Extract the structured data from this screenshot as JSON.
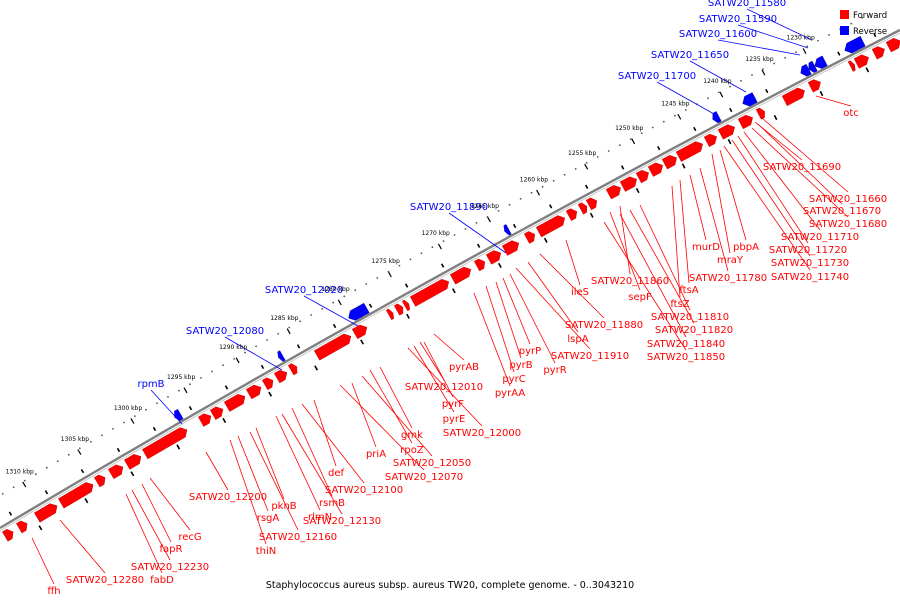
{
  "caption": "Staphylococcus aureus subsp. aureus TW20, complete genome. - 0..3043210",
  "legend": [
    {
      "label": "Forward",
      "color": "#ff0000"
    },
    {
      "label": "Reverse",
      "color": "#0000ff"
    }
  ],
  "colors": {
    "forward": "#ff0000",
    "reverse": "#0000ff",
    "backbone": "#808080",
    "tick": "#000000"
  },
  "ticks": [
    "1230 kbp",
    "1235 kbp",
    "1240 kbp",
    "1245 kbp",
    "1250 kbp",
    "1255 kbp",
    "1260 kbp",
    "1265 kbp",
    "1270 kbp",
    "1275 kbp",
    "1280 kbp",
    "1285 kbp",
    "1290 kbp",
    "1295 kbp",
    "1300 kbp",
    "1305 kbp",
    "1310 kbp"
  ],
  "reverse_genes": [
    "SATW20_11580",
    "SATW20_11590",
    "SATW20_11600",
    "SATW20_11650",
    "SATW20_11700",
    "SATW20_11890",
    "SATW20_12020",
    "SATW20_12080",
    "rpmB"
  ],
  "forward_genes": [
    "otc",
    "SATW20_11690",
    "SATW20_11660",
    "SATW20_11670",
    "SATW20_11680",
    "SATW20_11710",
    "SATW20_11720",
    "SATW20_11730",
    "SATW20_11740",
    "pbpA",
    "mraY",
    "murD",
    "SATW20_11780",
    "ftsA",
    "ftsZ",
    "SATW20_11860",
    "sepF",
    "ileS",
    "SATW20_11810",
    "SATW20_11820",
    "SATW20_11840",
    "SATW20_11850",
    "SATW20_11880",
    "lspA",
    "SATW20_11910",
    "pyrP",
    "pyrB",
    "pyrR",
    "pyrC",
    "pyrAA",
    "pyrAB",
    "SATW20_12010",
    "pyrF",
    "pyrE",
    "SATW20_12000",
    "gmk",
    "rpoZ",
    "SATW20_12050",
    "priA",
    "SATW20_12070",
    "def",
    "SATW20_12100",
    "rsmB",
    "SATW20_12130",
    "rlmN",
    "pknB",
    "SATW20_12160",
    "rsgA",
    "thiN",
    "SATW20_12200",
    "recG",
    "fapR",
    "SATW20_12230",
    "fabD",
    "SATW20_12280",
    "ffh"
  ]
}
